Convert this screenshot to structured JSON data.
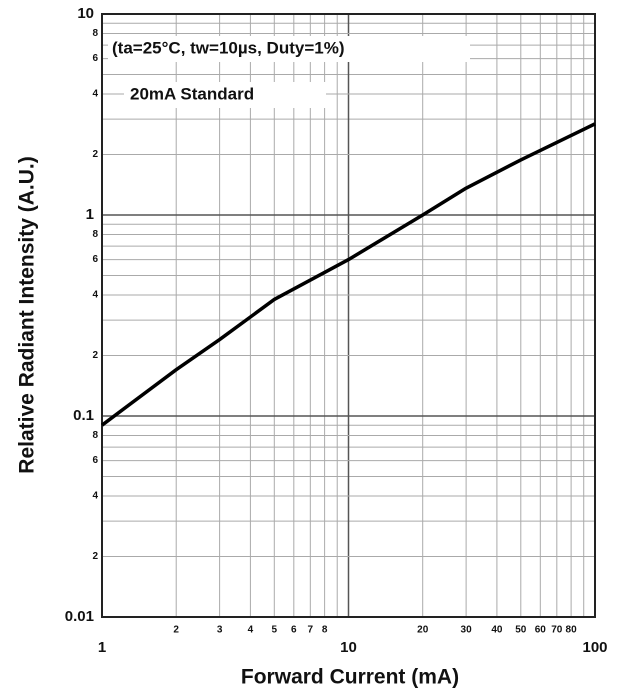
{
  "chart_data": {
    "type": "line",
    "x_label": "Forward Current (mA)",
    "y_label": "Relative Radiant Intensity (A.U.)",
    "annotations": [
      "(ta=25°C, tw=10µs, Duty=1%)",
      "20mA Standard"
    ],
    "x": [
      1,
      2,
      3,
      5,
      10,
      20,
      30,
      50,
      100
    ],
    "series": [
      {
        "name": "Relative Radiant Intensity",
        "color": "#000000",
        "values": [
          0.09,
          0.17,
          0.24,
          0.38,
          0.6,
          1.0,
          1.36,
          1.88,
          2.84
        ]
      }
    ],
    "xlim": [
      1,
      100
    ],
    "ylim": [
      0.01,
      10
    ],
    "xlog": true,
    "ylog": true,
    "grid": true,
    "xticks": [
      1,
      2,
      3,
      4,
      5,
      6,
      7,
      8,
      10,
      20,
      30,
      40,
      50,
      60,
      70,
      80,
      100
    ],
    "yticks": [
      0.01,
      {
        "value": 0.02,
        "label": "2"
      },
      {
        "value": 0.04,
        "label": "4"
      },
      {
        "value": 0.06,
        "label": "6"
      },
      {
        "value": 0.08,
        "label": "8"
      },
      0.1,
      {
        "value": 0.2,
        "label": "2"
      },
      {
        "value": 0.4,
        "label": "4"
      },
      {
        "value": 0.6,
        "label": "6"
      },
      {
        "value": 0.8,
        "label": "8"
      },
      1,
      {
        "value": 2,
        "label": "2"
      },
      {
        "value": 4,
        "label": "4"
      },
      {
        "value": 6,
        "label": "6"
      },
      {
        "value": 8,
        "label": "8"
      },
      10
    ]
  }
}
